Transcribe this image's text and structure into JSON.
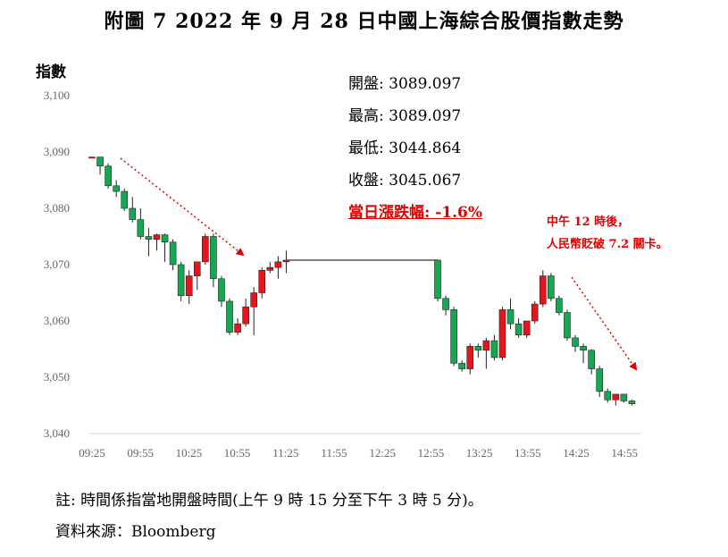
{
  "page": {
    "title": "附圖 7 2022 年 9 月 28 日中國上海綜合股價指數走勢",
    "footnote": "註: 時間係指當地開盤時間(上午 9 時 15 分至下午 3 時 5 分)。",
    "source": "資料來源：Bloomberg"
  },
  "stats": {
    "open": "開盤: 3089.097",
    "high": "最高: 3089.097",
    "low": "最低: 3044.864",
    "close": "收盤: 3045.067",
    "change": "當日漲跌幅: -1.6%"
  },
  "annotation": {
    "line1": "中午 12 時後，",
    "line2": "人民幣貶破 7.2 關卡。"
  },
  "colors": {
    "up": "#e8141c",
    "down": "#16a850",
    "annotation": "#e00000",
    "lunch_line": "#555555"
  },
  "chart_data": {
    "type": "candlestick",
    "ylabel": "指數",
    "ylim": [
      3040,
      3100
    ],
    "yticks": [
      3040,
      3050,
      3060,
      3070,
      3080,
      3090,
      3100
    ],
    "ytick_labels": [
      "3,040",
      "3,050",
      "3,060",
      "3,070",
      "3,080",
      "3,090",
      "3,100"
    ],
    "xtick_labels": [
      "09:25",
      "09:55",
      "10:25",
      "10:55",
      "11:25",
      "11:55",
      "12:25",
      "12:55",
      "13:25",
      "13:55",
      "14:25",
      "14:55"
    ],
    "morning": [
      {
        "o": 3089.1,
        "h": 3089.1,
        "l": 3089.1,
        "c": 3089.1
      },
      {
        "o": 3089.1,
        "h": 3089.1,
        "l": 3086.0,
        "c": 3087.5
      },
      {
        "o": 3087.5,
        "h": 3088.0,
        "l": 3083.5,
        "c": 3084.0
      },
      {
        "o": 3084.0,
        "h": 3085.0,
        "l": 3082.0,
        "c": 3083.0
      },
      {
        "o": 3083.0,
        "h": 3083.5,
        "l": 3079.5,
        "c": 3080.0
      },
      {
        "o": 3080.0,
        "h": 3082.0,
        "l": 3077.5,
        "c": 3078.0
      },
      {
        "o": 3078.0,
        "h": 3080.0,
        "l": 3074.5,
        "c": 3075.0
      },
      {
        "o": 3075.0,
        "h": 3076.5,
        "l": 3071.5,
        "c": 3074.5
      },
      {
        "o": 3074.5,
        "h": 3075.5,
        "l": 3072.5,
        "c": 3075.3
      },
      {
        "o": 3075.3,
        "h": 3075.5,
        "l": 3070.5,
        "c": 3074.0
      },
      {
        "o": 3074.0,
        "h": 3074.5,
        "l": 3069.0,
        "c": 3070.0
      },
      {
        "o": 3070.0,
        "h": 3070.5,
        "l": 3063.5,
        "c": 3064.5
      },
      {
        "o": 3064.5,
        "h": 3069.0,
        "l": 3063.0,
        "c": 3068.0
      },
      {
        "o": 3068.0,
        "h": 3070.0,
        "l": 3065.5,
        "c": 3070.5
      },
      {
        "o": 3070.5,
        "h": 3075.5,
        "l": 3070.0,
        "c": 3075.0
      },
      {
        "o": 3075.0,
        "h": 3075.5,
        "l": 3066.0,
        "c": 3067.5
      },
      {
        "o": 3067.5,
        "h": 3068.0,
        "l": 3062.5,
        "c": 3063.5
      },
      {
        "o": 3063.5,
        "h": 3064.0,
        "l": 3057.5,
        "c": 3058.0
      },
      {
        "o": 3058.0,
        "h": 3060.5,
        "l": 3057.5,
        "c": 3059.5
      },
      {
        "o": 3059.5,
        "h": 3064.0,
        "l": 3059.0,
        "c": 3062.5
      },
      {
        "o": 3062.5,
        "h": 3066.0,
        "l": 3057.5,
        "c": 3065.0
      },
      {
        "o": 3065.0,
        "h": 3069.5,
        "l": 3064.0,
        "c": 3069.0
      },
      {
        "o": 3069.0,
        "h": 3070.5,
        "l": 3068.5,
        "c": 3069.5
      },
      {
        "o": 3069.5,
        "h": 3071.5,
        "l": 3067.5,
        "c": 3070.5
      },
      {
        "o": 3070.5,
        "h": 3072.5,
        "l": 3068.5,
        "c": 3070.8
      }
    ],
    "lunch_level": 3070.8,
    "afternoon": [
      {
        "o": 3070.8,
        "h": 3070.8,
        "l": 3063.5,
        "c": 3064.0
      },
      {
        "o": 3064.0,
        "h": 3064.5,
        "l": 3061.0,
        "c": 3062.0
      },
      {
        "o": 3062.0,
        "h": 3062.5,
        "l": 3052.0,
        "c": 3052.5
      },
      {
        "o": 3052.5,
        "h": 3053.0,
        "l": 3051.0,
        "c": 3051.5
      },
      {
        "o": 3051.5,
        "h": 3056.0,
        "l": 3050.5,
        "c": 3055.5
      },
      {
        "o": 3055.5,
        "h": 3056.0,
        "l": 3053.5,
        "c": 3054.8
      },
      {
        "o": 3054.8,
        "h": 3057.0,
        "l": 3051.5,
        "c": 3056.5
      },
      {
        "o": 3056.5,
        "h": 3057.5,
        "l": 3053.0,
        "c": 3053.5
      },
      {
        "o": 3053.5,
        "h": 3062.5,
        "l": 3053.0,
        "c": 3062.0
      },
      {
        "o": 3062.0,
        "h": 3064.0,
        "l": 3058.5,
        "c": 3059.5
      },
      {
        "o": 3059.5,
        "h": 3060.5,
        "l": 3057.0,
        "c": 3057.5
      },
      {
        "o": 3057.5,
        "h": 3060.0,
        "l": 3057.0,
        "c": 3060.0
      },
      {
        "o": 3060.0,
        "h": 3063.5,
        "l": 3059.5,
        "c": 3063.0
      },
      {
        "o": 3063.0,
        "h": 3069.0,
        "l": 3062.5,
        "c": 3068.0
      },
      {
        "o": 3068.0,
        "h": 3068.5,
        "l": 3063.5,
        "c": 3064.0
      },
      {
        "o": 3064.0,
        "h": 3064.5,
        "l": 3061.0,
        "c": 3061.5
      },
      {
        "o": 3061.5,
        "h": 3062.0,
        "l": 3056.5,
        "c": 3057.0
      },
      {
        "o": 3057.0,
        "h": 3057.5,
        "l": 3054.5,
        "c": 3055.5
      },
      {
        "o": 3055.5,
        "h": 3056.0,
        "l": 3052.5,
        "c": 3054.8
      },
      {
        "o": 3054.8,
        "h": 3055.0,
        "l": 3050.5,
        "c": 3051.5
      },
      {
        "o": 3051.5,
        "h": 3052.0,
        "l": 3046.5,
        "c": 3047.5
      },
      {
        "o": 3047.5,
        "h": 3048.0,
        "l": 3045.5,
        "c": 3046.0
      },
      {
        "o": 3046.0,
        "h": 3046.5,
        "l": 3045.0,
        "c": 3047.0
      },
      {
        "o": 3047.0,
        "h": 3047.0,
        "l": 3045.5,
        "c": 3045.8
      },
      {
        "o": 3045.8,
        "h": 3046.0,
        "l": 3045.0,
        "c": 3045.3
      }
    ]
  }
}
